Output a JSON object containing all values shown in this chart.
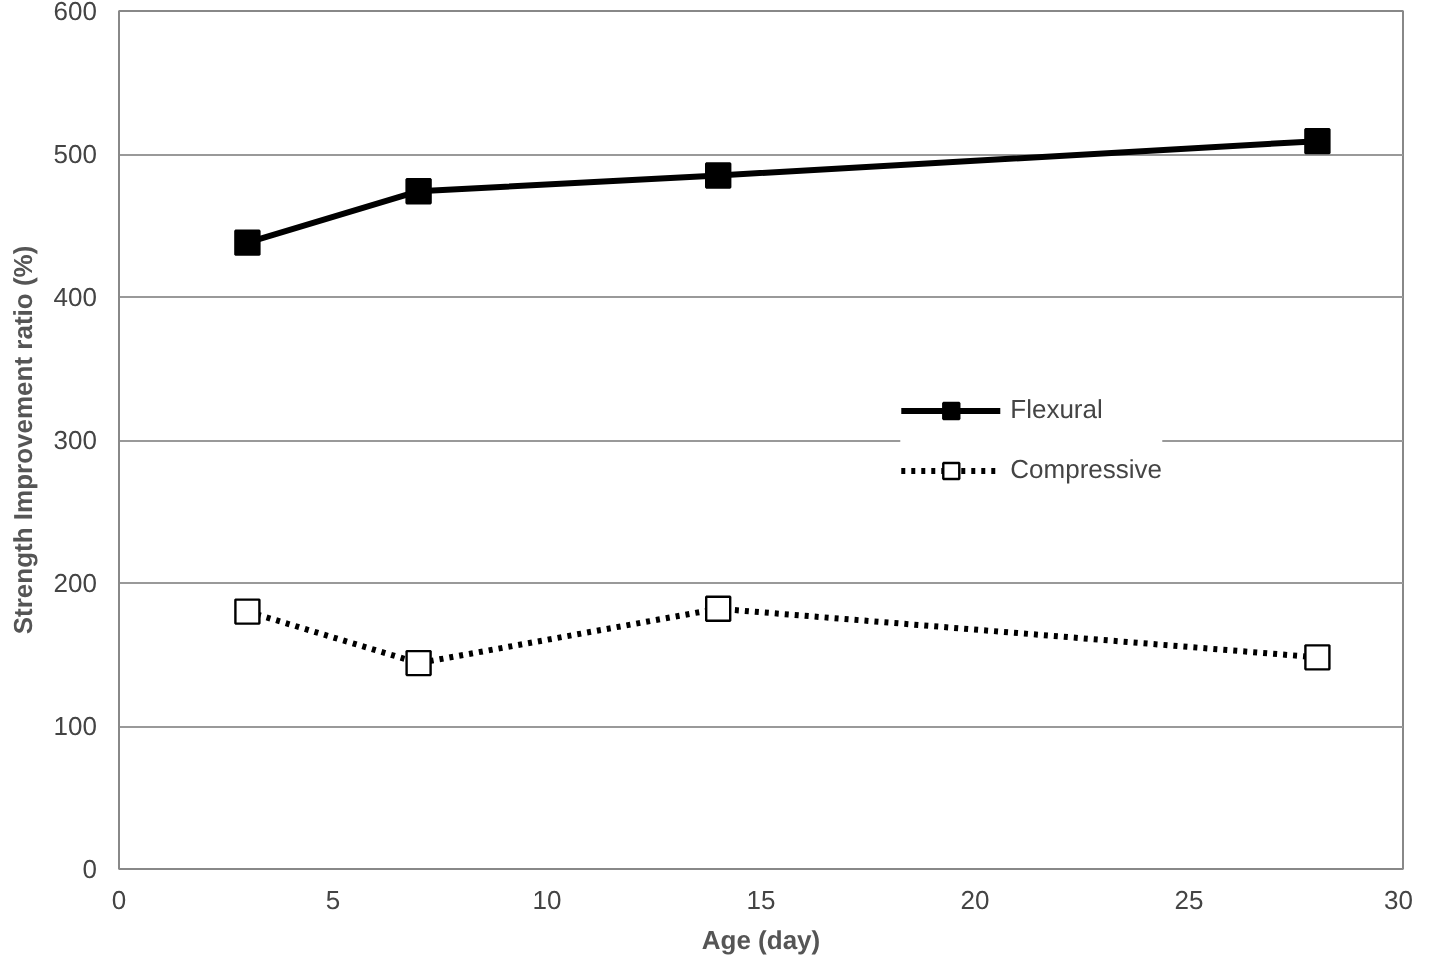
{
  "chart_data": {
    "type": "line",
    "xlabel": "Age (day)",
    "ylabel": "Strength Improvement ratio (%)",
    "x": [
      3,
      7,
      14,
      28
    ],
    "series": [
      {
        "name": "Flexural",
        "color": "#000000",
        "values": [
          438,
          474,
          485,
          509
        ],
        "marker": "square",
        "line_style": "solid"
      },
      {
        "name": "Compressive",
        "color": "#000000",
        "values": [
          180,
          144,
          182,
          148
        ],
        "marker": "square",
        "line_style": "dotted"
      }
    ],
    "xlim": [
      0,
      30
    ],
    "xticks": [
      0,
      5,
      10,
      15,
      20,
      25,
      30
    ],
    "ylim": [
      0,
      600
    ],
    "yticks": [
      0,
      100,
      200,
      300,
      400,
      500,
      600
    ],
    "grid": "y",
    "legend": "right"
  }
}
